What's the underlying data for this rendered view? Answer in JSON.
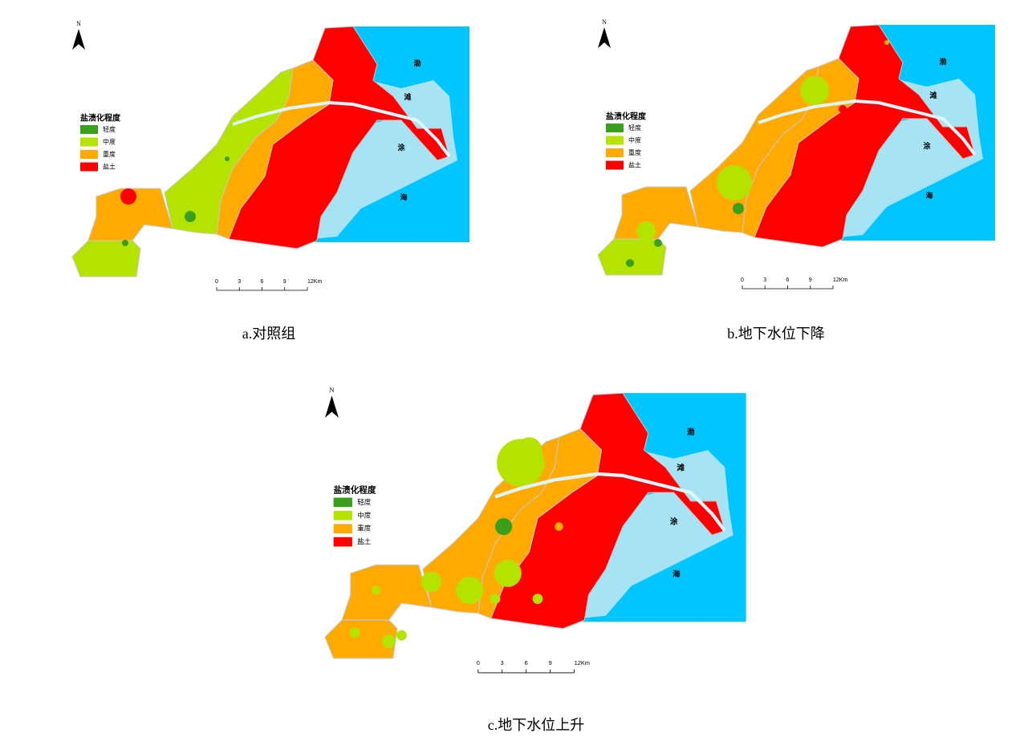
{
  "panels": [
    {
      "caption": "a.对照组",
      "north": "N",
      "legend": {
        "title": "盐渍化程度",
        "items": [
          {
            "label": "轻度",
            "color": "#3aa01c"
          },
          {
            "label": "中度",
            "color": "#b4e300"
          },
          {
            "label": "重度",
            "color": "#ffaa00"
          },
          {
            "label": "盐土",
            "color": "#ff0000"
          }
        ]
      },
      "sea_labels": [
        "渤",
        "滩",
        "涂",
        "海"
      ],
      "scale_labels": [
        "0",
        "3",
        "6",
        "9",
        "12Km"
      ]
    },
    {
      "caption": "b.地下水位下降",
      "north": "N",
      "legend": {
        "title": "盐渍化程度",
        "items": [
          {
            "label": "轻度",
            "color": "#3aa01c"
          },
          {
            "label": "中度",
            "color": "#b4e300"
          },
          {
            "label": "重度",
            "color": "#ffaa00"
          },
          {
            "label": "盐土",
            "color": "#ff0000"
          }
        ]
      },
      "sea_labels": [
        "渤",
        "滩",
        "涂",
        "海"
      ],
      "scale_labels": [
        "0",
        "3",
        "6",
        "9",
        "12Km"
      ]
    },
    {
      "caption": "c.地下水位上升",
      "north": "N",
      "legend": {
        "title": "盐渍化程度",
        "items": [
          {
            "label": "轻度",
            "color": "#3aa01c"
          },
          {
            "label": "中度",
            "color": "#b4e300"
          },
          {
            "label": "重度",
            "color": "#ffaa00"
          },
          {
            "label": "盐土",
            "color": "#ff0000"
          }
        ]
      },
      "sea_labels": [
        "渤",
        "滩",
        "涂",
        "海"
      ],
      "scale_labels": [
        "0",
        "3",
        "6",
        "9",
        "12Km"
      ]
    }
  ]
}
